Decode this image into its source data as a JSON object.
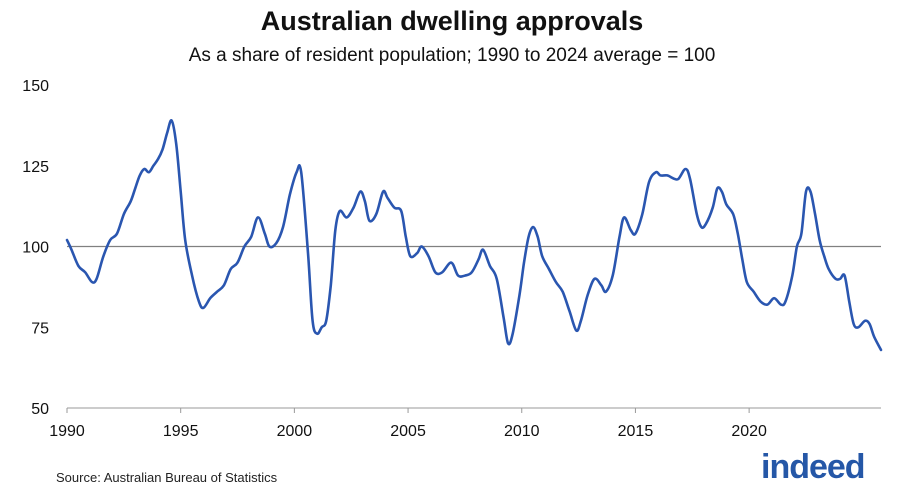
{
  "title": "Australian dwelling approvals",
  "subtitle": "As a share of resident population; 1990 to 2024 average = 100",
  "source": "Source: Australian Bureau of Statistics",
  "logo_text": "indeed",
  "colors": {
    "line": "#2a56b0",
    "reference": "#808080",
    "axis": "#9a9a9a",
    "brand": "#2557a7"
  },
  "chart_data": {
    "type": "line",
    "title": "Australian dwelling approvals",
    "subtitle": "As a share of resident population; 1990 to 2024 average = 100",
    "xlabel": "",
    "ylabel": "",
    "xlim": [
      1990,
      2024.5
    ],
    "ylim": [
      50,
      150
    ],
    "x_ticks": [
      1990,
      1995,
      2000,
      2005,
      2010,
      2015,
      2020
    ],
    "y_ticks": [
      50,
      75,
      100,
      125,
      150
    ],
    "grid": false,
    "reference_line": 100,
    "series": [
      {
        "values": [
          [
            1990.0,
            102
          ],
          [
            1990.2,
            99
          ],
          [
            1990.5,
            94
          ],
          [
            1990.8,
            92
          ],
          [
            1991.1,
            89
          ],
          [
            1991.3,
            90
          ],
          [
            1991.6,
            97
          ],
          [
            1991.9,
            102
          ],
          [
            1992.2,
            104
          ],
          [
            1992.5,
            110
          ],
          [
            1992.8,
            114
          ],
          [
            1993.0,
            118
          ],
          [
            1993.2,
            122
          ],
          [
            1993.4,
            124
          ],
          [
            1993.6,
            123
          ],
          [
            1993.8,
            125
          ],
          [
            1994.0,
            127
          ],
          [
            1994.2,
            130
          ],
          [
            1994.4,
            135
          ],
          [
            1994.6,
            139
          ],
          [
            1994.8,
            132
          ],
          [
            1995.0,
            117
          ],
          [
            1995.2,
            102
          ],
          [
            1995.5,
            91
          ],
          [
            1995.8,
            83
          ],
          [
            1996.0,
            81
          ],
          [
            1996.3,
            84
          ],
          [
            1996.6,
            86
          ],
          [
            1996.9,
            88
          ],
          [
            1997.2,
            93
          ],
          [
            1997.5,
            95
          ],
          [
            1997.8,
            100
          ],
          [
            1998.1,
            103
          ],
          [
            1998.4,
            109
          ],
          [
            1998.7,
            104
          ],
          [
            1998.9,
            100
          ],
          [
            1999.2,
            101
          ],
          [
            1999.5,
            106
          ],
          [
            1999.8,
            116
          ],
          [
            2000.1,
            123
          ],
          [
            2000.3,
            123
          ],
          [
            2000.6,
            98
          ],
          [
            2000.8,
            77
          ],
          [
            2001.0,
            73
          ],
          [
            2001.2,
            75
          ],
          [
            2001.4,
            77
          ],
          [
            2001.6,
            88
          ],
          [
            2001.8,
            105
          ],
          [
            2002.0,
            111
          ],
          [
            2002.3,
            109
          ],
          [
            2002.6,
            112
          ],
          [
            2002.9,
            117
          ],
          [
            2003.1,
            114
          ],
          [
            2003.3,
            108
          ],
          [
            2003.6,
            110
          ],
          [
            2003.9,
            117
          ],
          [
            2004.1,
            115
          ],
          [
            2004.4,
            112
          ],
          [
            2004.7,
            111
          ],
          [
            2004.9,
            103
          ],
          [
            2005.1,
            97
          ],
          [
            2005.4,
            98
          ],
          [
            2005.6,
            100
          ],
          [
            2005.9,
            97
          ],
          [
            2006.2,
            92
          ],
          [
            2006.5,
            92
          ],
          [
            2006.9,
            95
          ],
          [
            2007.2,
            91
          ],
          [
            2007.5,
            91
          ],
          [
            2007.8,
            92
          ],
          [
            2008.1,
            96
          ],
          [
            2008.3,
            99
          ],
          [
            2008.6,
            94
          ],
          [
            2008.9,
            90
          ],
          [
            2009.2,
            78
          ],
          [
            2009.4,
            70
          ],
          [
            2009.6,
            73
          ],
          [
            2009.9,
            85
          ],
          [
            2010.1,
            95
          ],
          [
            2010.3,
            103
          ],
          [
            2010.5,
            106
          ],
          [
            2010.7,
            103
          ],
          [
            2010.9,
            97
          ],
          [
            2011.2,
            93
          ],
          [
            2011.5,
            89
          ],
          [
            2011.8,
            86
          ],
          [
            2012.1,
            80
          ],
          [
            2012.4,
            74
          ],
          [
            2012.6,
            77
          ],
          [
            2012.9,
            85
          ],
          [
            2013.2,
            90
          ],
          [
            2013.5,
            88
          ],
          [
            2013.7,
            86
          ],
          [
            2014.0,
            91
          ],
          [
            2014.3,
            103
          ],
          [
            2014.5,
            109
          ],
          [
            2014.8,
            105
          ],
          [
            2015.0,
            104
          ],
          [
            2015.3,
            110
          ],
          [
            2015.6,
            120
          ],
          [
            2015.9,
            123
          ],
          [
            2016.1,
            122
          ],
          [
            2016.4,
            122
          ],
          [
            2016.7,
            121
          ],
          [
            2016.9,
            121
          ],
          [
            2017.2,
            124
          ],
          [
            2017.4,
            121
          ],
          [
            2017.7,
            110
          ],
          [
            2017.9,
            106
          ],
          [
            2018.1,
            107
          ],
          [
            2018.4,
            112
          ],
          [
            2018.6,
            118
          ],
          [
            2018.8,
            117
          ],
          [
            2019.0,
            113
          ],
          [
            2019.3,
            110
          ],
          [
            2019.5,
            104
          ],
          [
            2019.7,
            96
          ],
          [
            2019.9,
            89
          ],
          [
            2020.2,
            86
          ],
          [
            2020.5,
            83
          ],
          [
            2020.8,
            82
          ],
          [
            2021.1,
            84
          ],
          [
            2021.4,
            82
          ],
          [
            2021.6,
            83
          ],
          [
            2021.9,
            91
          ],
          [
            2022.1,
            100
          ],
          [
            2022.3,
            104
          ],
          [
            2022.5,
            117
          ],
          [
            2022.7,
            117
          ],
          [
            2022.9,
            110
          ],
          [
            2023.1,
            102
          ],
          [
            2023.3,
            97
          ],
          [
            2023.5,
            93
          ],
          [
            2023.8,
            90
          ],
          [
            2024.0,
            90
          ],
          [
            2024.2,
            91
          ],
          [
            2024.4,
            83
          ],
          [
            2024.6,
            76
          ],
          [
            2024.8,
            75
          ],
          [
            2025.1,
            77
          ],
          [
            2025.3,
            76
          ],
          [
            2025.5,
            72
          ],
          [
            2025.8,
            68
          ]
        ]
      }
    ]
  }
}
